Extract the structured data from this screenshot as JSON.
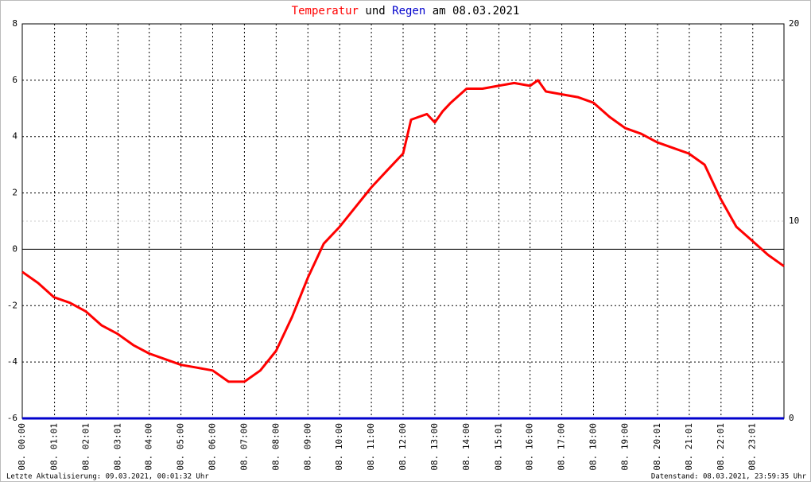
{
  "chart_data": {
    "type": "line",
    "title_joiner": "und",
    "title_suffix": "am 08.03.2021",
    "xlim": [
      0,
      24
    ],
    "xticks": [
      {
        "value": 0,
        "label": "08. 00:00"
      },
      {
        "value": 1.0167,
        "label": "08. 01:01"
      },
      {
        "value": 2.0167,
        "label": "08. 02:01"
      },
      {
        "value": 3.0167,
        "label": "08. 03:01"
      },
      {
        "value": 4,
        "label": "08. 04:00"
      },
      {
        "value": 5,
        "label": "08. 05:00"
      },
      {
        "value": 6,
        "label": "08. 06:00"
      },
      {
        "value": 7,
        "label": "08. 07:00"
      },
      {
        "value": 8,
        "label": "08. 08:00"
      },
      {
        "value": 9,
        "label": "08. 09:00"
      },
      {
        "value": 10,
        "label": "08. 10:00"
      },
      {
        "value": 11,
        "label": "08. 11:00"
      },
      {
        "value": 12,
        "label": "08. 12:00"
      },
      {
        "value": 13,
        "label": "08. 13:00"
      },
      {
        "value": 14,
        "label": "08. 14:00"
      },
      {
        "value": 15.0167,
        "label": "08. 15:01"
      },
      {
        "value": 16,
        "label": "08. 16:00"
      },
      {
        "value": 17,
        "label": "08. 17:00"
      },
      {
        "value": 18,
        "label": "08. 18:00"
      },
      {
        "value": 19,
        "label": "08. 19:00"
      },
      {
        "value": 20.0167,
        "label": "08. 20:01"
      },
      {
        "value": 21.0167,
        "label": "08. 21:01"
      },
      {
        "value": 22.0167,
        "label": "08. 22:01"
      },
      {
        "value": 23.0167,
        "label": "08. 23:01"
      }
    ],
    "ylim": [
      -6,
      8
    ],
    "yticks": [
      -6,
      -4,
      -2,
      0,
      2,
      4,
      6,
      8
    ],
    "y2lim": [
      0,
      20
    ],
    "y2ticks": [
      0,
      10,
      20
    ],
    "grid": true,
    "series": [
      {
        "name": "Temperatur",
        "color": "#ff0000",
        "x": [
          0,
          0.5,
          1,
          1.5,
          2,
          2.5,
          3,
          3.5,
          4,
          4.5,
          5,
          5.5,
          6,
          6.5,
          7,
          7.5,
          8,
          8.5,
          9,
          9.5,
          10,
          10.5,
          11,
          11.5,
          12,
          12.25,
          12.5,
          12.75,
          13,
          13.25,
          13.5,
          14,
          14.5,
          15,
          15.5,
          16,
          16.25,
          16.5,
          17,
          17.5,
          18,
          18.5,
          19,
          19.5,
          20,
          20.5,
          21,
          21.5,
          22,
          22.5,
          23,
          23.5,
          24
        ],
        "values": [
          -0.8,
          -1.2,
          -1.7,
          -1.9,
          -2.2,
          -2.7,
          -3.0,
          -3.4,
          -3.7,
          -3.9,
          -4.1,
          -4.2,
          -4.3,
          -4.7,
          -4.7,
          -4.3,
          -3.6,
          -2.4,
          -1.0,
          0.2,
          0.8,
          1.5,
          2.2,
          2.8,
          3.4,
          4.6,
          4.7,
          4.8,
          4.5,
          4.9,
          5.2,
          5.7,
          5.7,
          5.8,
          5.9,
          5.8,
          6.0,
          5.6,
          5.5,
          5.4,
          5.2,
          4.7,
          4.3,
          4.1,
          3.8,
          3.6,
          3.4,
          3.0,
          1.8,
          0.8,
          0.3,
          -0.2,
          -0.6
        ]
      },
      {
        "name": "Regen",
        "color": "#0000cc",
        "axis": "y2",
        "x": [
          0,
          24
        ],
        "values": [
          0,
          0
        ]
      }
    ],
    "update_note": "Letzte Aktualisierung: 09.03.2021, 00:01:32 Uhr",
    "data_note": "Datenstand: 08.03.2021, 23:59:35 Uhr"
  }
}
